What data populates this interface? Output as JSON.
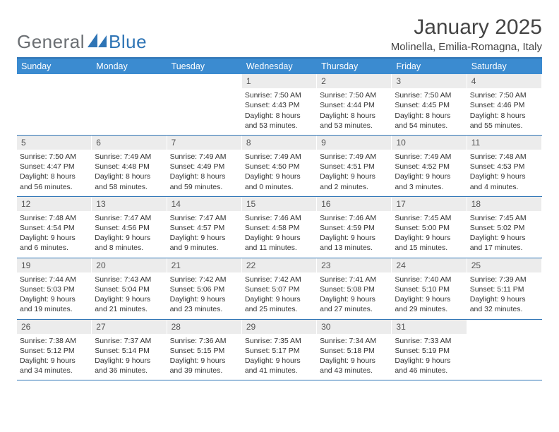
{
  "brand": {
    "gen": "General",
    "blue": "Blue"
  },
  "title": "January 2025",
  "location": "Molinella, Emilia-Romagna, Italy",
  "colors": {
    "accent": "#3b8bd0",
    "border": "#2e74b5",
    "daynum_bg": "#ececec",
    "text": "#333333",
    "logo_gray": "#6b6f73"
  },
  "weekdays": [
    "Sunday",
    "Monday",
    "Tuesday",
    "Wednesday",
    "Thursday",
    "Friday",
    "Saturday"
  ],
  "weeks": [
    [
      {
        "n": "",
        "sr": "",
        "ss": "",
        "dl": ""
      },
      {
        "n": "",
        "sr": "",
        "ss": "",
        "dl": ""
      },
      {
        "n": "",
        "sr": "",
        "ss": "",
        "dl": ""
      },
      {
        "n": "1",
        "sr": "Sunrise: 7:50 AM",
        "ss": "Sunset: 4:43 PM",
        "dl": "Daylight: 8 hours and 53 minutes."
      },
      {
        "n": "2",
        "sr": "Sunrise: 7:50 AM",
        "ss": "Sunset: 4:44 PM",
        "dl": "Daylight: 8 hours and 53 minutes."
      },
      {
        "n": "3",
        "sr": "Sunrise: 7:50 AM",
        "ss": "Sunset: 4:45 PM",
        "dl": "Daylight: 8 hours and 54 minutes."
      },
      {
        "n": "4",
        "sr": "Sunrise: 7:50 AM",
        "ss": "Sunset: 4:46 PM",
        "dl": "Daylight: 8 hours and 55 minutes."
      }
    ],
    [
      {
        "n": "5",
        "sr": "Sunrise: 7:50 AM",
        "ss": "Sunset: 4:47 PM",
        "dl": "Daylight: 8 hours and 56 minutes."
      },
      {
        "n": "6",
        "sr": "Sunrise: 7:49 AM",
        "ss": "Sunset: 4:48 PM",
        "dl": "Daylight: 8 hours and 58 minutes."
      },
      {
        "n": "7",
        "sr": "Sunrise: 7:49 AM",
        "ss": "Sunset: 4:49 PM",
        "dl": "Daylight: 8 hours and 59 minutes."
      },
      {
        "n": "8",
        "sr": "Sunrise: 7:49 AM",
        "ss": "Sunset: 4:50 PM",
        "dl": "Daylight: 9 hours and 0 minutes."
      },
      {
        "n": "9",
        "sr": "Sunrise: 7:49 AM",
        "ss": "Sunset: 4:51 PM",
        "dl": "Daylight: 9 hours and 2 minutes."
      },
      {
        "n": "10",
        "sr": "Sunrise: 7:49 AM",
        "ss": "Sunset: 4:52 PM",
        "dl": "Daylight: 9 hours and 3 minutes."
      },
      {
        "n": "11",
        "sr": "Sunrise: 7:48 AM",
        "ss": "Sunset: 4:53 PM",
        "dl": "Daylight: 9 hours and 4 minutes."
      }
    ],
    [
      {
        "n": "12",
        "sr": "Sunrise: 7:48 AM",
        "ss": "Sunset: 4:54 PM",
        "dl": "Daylight: 9 hours and 6 minutes."
      },
      {
        "n": "13",
        "sr": "Sunrise: 7:47 AM",
        "ss": "Sunset: 4:56 PM",
        "dl": "Daylight: 9 hours and 8 minutes."
      },
      {
        "n": "14",
        "sr": "Sunrise: 7:47 AM",
        "ss": "Sunset: 4:57 PM",
        "dl": "Daylight: 9 hours and 9 minutes."
      },
      {
        "n": "15",
        "sr": "Sunrise: 7:46 AM",
        "ss": "Sunset: 4:58 PM",
        "dl": "Daylight: 9 hours and 11 minutes."
      },
      {
        "n": "16",
        "sr": "Sunrise: 7:46 AM",
        "ss": "Sunset: 4:59 PM",
        "dl": "Daylight: 9 hours and 13 minutes."
      },
      {
        "n": "17",
        "sr": "Sunrise: 7:45 AM",
        "ss": "Sunset: 5:00 PM",
        "dl": "Daylight: 9 hours and 15 minutes."
      },
      {
        "n": "18",
        "sr": "Sunrise: 7:45 AM",
        "ss": "Sunset: 5:02 PM",
        "dl": "Daylight: 9 hours and 17 minutes."
      }
    ],
    [
      {
        "n": "19",
        "sr": "Sunrise: 7:44 AM",
        "ss": "Sunset: 5:03 PM",
        "dl": "Daylight: 9 hours and 19 minutes."
      },
      {
        "n": "20",
        "sr": "Sunrise: 7:43 AM",
        "ss": "Sunset: 5:04 PM",
        "dl": "Daylight: 9 hours and 21 minutes."
      },
      {
        "n": "21",
        "sr": "Sunrise: 7:42 AM",
        "ss": "Sunset: 5:06 PM",
        "dl": "Daylight: 9 hours and 23 minutes."
      },
      {
        "n": "22",
        "sr": "Sunrise: 7:42 AM",
        "ss": "Sunset: 5:07 PM",
        "dl": "Daylight: 9 hours and 25 minutes."
      },
      {
        "n": "23",
        "sr": "Sunrise: 7:41 AM",
        "ss": "Sunset: 5:08 PM",
        "dl": "Daylight: 9 hours and 27 minutes."
      },
      {
        "n": "24",
        "sr": "Sunrise: 7:40 AM",
        "ss": "Sunset: 5:10 PM",
        "dl": "Daylight: 9 hours and 29 minutes."
      },
      {
        "n": "25",
        "sr": "Sunrise: 7:39 AM",
        "ss": "Sunset: 5:11 PM",
        "dl": "Daylight: 9 hours and 32 minutes."
      }
    ],
    [
      {
        "n": "26",
        "sr": "Sunrise: 7:38 AM",
        "ss": "Sunset: 5:12 PM",
        "dl": "Daylight: 9 hours and 34 minutes."
      },
      {
        "n": "27",
        "sr": "Sunrise: 7:37 AM",
        "ss": "Sunset: 5:14 PM",
        "dl": "Daylight: 9 hours and 36 minutes."
      },
      {
        "n": "28",
        "sr": "Sunrise: 7:36 AM",
        "ss": "Sunset: 5:15 PM",
        "dl": "Daylight: 9 hours and 39 minutes."
      },
      {
        "n": "29",
        "sr": "Sunrise: 7:35 AM",
        "ss": "Sunset: 5:17 PM",
        "dl": "Daylight: 9 hours and 41 minutes."
      },
      {
        "n": "30",
        "sr": "Sunrise: 7:34 AM",
        "ss": "Sunset: 5:18 PM",
        "dl": "Daylight: 9 hours and 43 minutes."
      },
      {
        "n": "31",
        "sr": "Sunrise: 7:33 AM",
        "ss": "Sunset: 5:19 PM",
        "dl": "Daylight: 9 hours and 46 minutes."
      },
      {
        "n": "",
        "sr": "",
        "ss": "",
        "dl": ""
      }
    ]
  ]
}
